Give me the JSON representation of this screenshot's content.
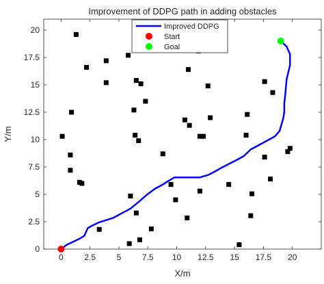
{
  "chart_data": {
    "type": "scatter",
    "title": "Improvement of DDPG path in adding obstacles",
    "xlabel": "X/m",
    "ylabel": "Y/m",
    "xlim": [
      -1.5,
      22.5
    ],
    "ylim": [
      0,
      21
    ],
    "xticks": [
      0,
      2.5,
      5,
      7.5,
      10,
      12.5,
      15,
      17.5,
      20
    ],
    "xtick_labels": [
      "0",
      "2.5",
      "5",
      "7.5",
      "10",
      "12.5",
      "15",
      "17.5",
      "20"
    ],
    "yticks": [
      0,
      2.5,
      5,
      7.5,
      10,
      12.5,
      15,
      17.5,
      20
    ],
    "ytick_labels": [
      "0",
      "2.5",
      "5",
      "7.5",
      "10",
      "12.5",
      "15",
      "17.5",
      "20"
    ],
    "grid": false,
    "legend_position": "top-center",
    "series": [
      {
        "name": "Improved DDPG",
        "kind": "line",
        "color": "#0000ff",
        "points": [
          [
            0,
            0
          ],
          [
            0.5,
            0.4
          ],
          [
            1,
            0.65
          ],
          [
            1.5,
            0.9
          ],
          [
            2,
            1.2
          ],
          [
            2.3,
            1.9
          ],
          [
            2.6,
            2.1
          ],
          [
            3.3,
            2.45
          ],
          [
            4.5,
            2.85
          ],
          [
            5.3,
            3.3
          ],
          [
            6,
            3.7
          ],
          [
            6.7,
            4.3
          ],
          [
            7.4,
            4.95
          ],
          [
            8.1,
            5.5
          ],
          [
            8.8,
            5.9
          ],
          [
            9.4,
            6.3
          ],
          [
            9.8,
            6.55
          ],
          [
            12,
            6.55
          ],
          [
            12.8,
            6.8
          ],
          [
            14,
            7.5
          ],
          [
            15.2,
            8.15
          ],
          [
            15.8,
            8.5
          ],
          [
            16.4,
            9.1
          ],
          [
            17.1,
            9.5
          ],
          [
            17.8,
            9.9
          ],
          [
            18.5,
            10.3
          ],
          [
            18.9,
            10.8
          ],
          [
            19.2,
            11.9
          ],
          [
            19.3,
            12.5
          ],
          [
            19.3,
            13.3
          ],
          [
            19.4,
            14.3
          ],
          [
            19.5,
            15.5
          ],
          [
            19.8,
            16.8
          ],
          [
            19.8,
            17.8
          ],
          [
            19.5,
            18.5
          ],
          [
            19,
            19
          ]
        ]
      },
      {
        "name": "Start",
        "kind": "marker",
        "color": "#ff0000",
        "points": [
          [
            0,
            0
          ]
        ]
      },
      {
        "name": "Goal",
        "kind": "marker",
        "color": "#00ff00",
        "points": [
          [
            19,
            19
          ]
        ]
      },
      {
        "name": "",
        "kind": "obstacles",
        "color": "#000000",
        "points": [
          [
            1.3,
            19.6
          ],
          [
            2.2,
            16.6
          ],
          [
            3.9,
            17.2
          ],
          [
            3.9,
            15.2
          ],
          [
            0.9,
            12.5
          ],
          [
            0.1,
            10.3
          ],
          [
            0.8,
            8.6
          ],
          [
            0.8,
            7.2
          ],
          [
            1.6,
            6.1
          ],
          [
            1.8,
            6.0
          ],
          [
            3.3,
            1.8
          ],
          [
            5.8,
            17.7
          ],
          [
            6.5,
            15.4
          ],
          [
            6.9,
            15.1
          ],
          [
            7.3,
            13.5
          ],
          [
            6.3,
            12.7
          ],
          [
            6.4,
            10.4
          ],
          [
            6.7,
            9.9
          ],
          [
            8.8,
            8.7
          ],
          [
            6.0,
            4.85
          ],
          [
            6.5,
            3.3
          ],
          [
            6.8,
            0.85
          ],
          [
            7.8,
            1.85
          ],
          [
            5.9,
            0.5
          ],
          [
            9.5,
            5.9
          ],
          [
            9.9,
            4.5
          ],
          [
            10.7,
            11.8
          ],
          [
            11.1,
            11.3
          ],
          [
            10.9,
            2.85
          ],
          [
            11.0,
            16.4
          ],
          [
            11.9,
            18.1
          ],
          [
            12.0,
            10.3
          ],
          [
            12.3,
            10.3
          ],
          [
            12.7,
            14.9
          ],
          [
            12.9,
            12.0
          ],
          [
            12.0,
            5.3
          ],
          [
            14.5,
            5.9
          ],
          [
            15.4,
            0.4
          ],
          [
            16.1,
            12.3
          ],
          [
            16.0,
            10.4
          ],
          [
            16.5,
            5.05
          ],
          [
            16.4,
            3.05
          ],
          [
            17.6,
            15.3
          ],
          [
            18.3,
            14.3
          ],
          [
            17.6,
            8.4
          ],
          [
            18.1,
            6.4
          ],
          [
            19.8,
            9.2
          ],
          [
            19.6,
            8.9
          ]
        ]
      }
    ]
  }
}
